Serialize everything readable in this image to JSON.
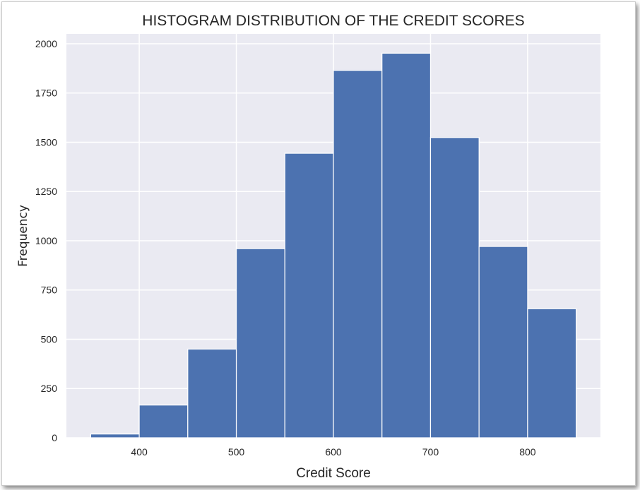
{
  "chart_data": {
    "type": "bar",
    "title": "HISTOGRAM DISTRIBUTION OF THE CREDIT SCORES",
    "xlabel": "Credit Score",
    "ylabel": "Frequency",
    "bin_edges": [
      350,
      400,
      450,
      500,
      550,
      600,
      650,
      700,
      750,
      800,
      850
    ],
    "values": [
      19,
      166,
      450,
      960,
      1444,
      1865,
      1952,
      1524,
      971,
      655
    ],
    "xlim": [
      325,
      875
    ],
    "ylim": [
      0,
      2050
    ],
    "xticks": [
      400,
      500,
      600,
      700,
      800
    ],
    "yticks": [
      0,
      250,
      500,
      750,
      1000,
      1250,
      1500,
      1750,
      2000
    ],
    "grid": true,
    "bar_color": "#4c72b0",
    "plot_background": "#eaeaf2",
    "grid_color": "#ffffff"
  }
}
